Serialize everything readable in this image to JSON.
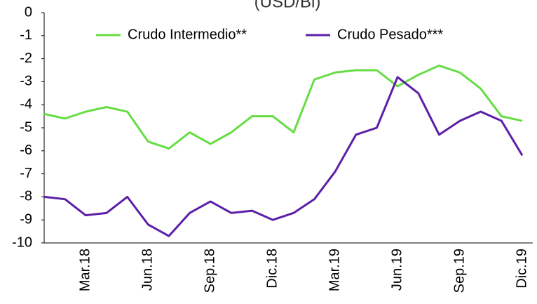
{
  "chart_data": {
    "type": "line",
    "title": "(USD/Bl)",
    "categories": [
      null,
      null,
      "Mar.18",
      null,
      null,
      "Jun.18",
      null,
      null,
      "Sep.18",
      null,
      null,
      "Dic.18",
      null,
      null,
      "Mar.19",
      null,
      null,
      "Jun.19",
      null,
      null,
      "Sep.19",
      null,
      null,
      "Dic.19"
    ],
    "series": [
      {
        "name": "Crudo Intermedio**",
        "color": "#66dd44",
        "values": [
          -4.4,
          -4.6,
          -4.3,
          -4.1,
          -4.3,
          -5.6,
          -5.9,
          -5.2,
          -5.7,
          -5.2,
          -4.5,
          -4.5,
          -5.2,
          -2.9,
          -2.6,
          -2.5,
          -2.5,
          -3.2,
          -2.7,
          -2.3,
          -2.6,
          -3.3,
          -4.5,
          -4.7
        ]
      },
      {
        "name": "Crudo Pesado***",
        "color": "#5b1fa8",
        "values": [
          -8.0,
          -8.1,
          -8.8,
          -8.7,
          -8.0,
          -9.2,
          -9.7,
          -8.7,
          -8.2,
          -8.7,
          -8.6,
          -9.0,
          -8.7,
          -8.1,
          -6.9,
          -5.3,
          -5.0,
          -2.8,
          -3.5,
          -5.3,
          -4.7,
          -4.3,
          -4.7,
          -6.2
        ]
      }
    ],
    "ylim": [
      -10,
      0
    ],
    "yticks": [
      0,
      -1,
      -2,
      -3,
      -4,
      -5,
      -6,
      -7,
      -8,
      -9,
      -10
    ],
    "legend": "top",
    "grid": false
  }
}
